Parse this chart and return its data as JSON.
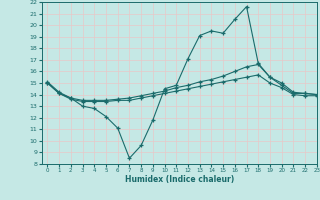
{
  "xlabel": "Humidex (Indice chaleur)",
  "xlim": [
    -0.5,
    23
  ],
  "ylim": [
    8,
    22
  ],
  "xticks": [
    0,
    1,
    2,
    3,
    4,
    5,
    6,
    7,
    8,
    9,
    10,
    11,
    12,
    13,
    14,
    15,
    16,
    17,
    18,
    19,
    20,
    21,
    22,
    23
  ],
  "yticks": [
    8,
    9,
    10,
    11,
    12,
    13,
    14,
    15,
    16,
    17,
    18,
    19,
    20,
    21,
    22
  ],
  "bg_color": "#c5e8e5",
  "grid_color": "#e8c8c8",
  "line_color": "#1a6b6b",
  "line1_x": [
    0,
    1,
    2,
    3,
    4,
    5,
    6,
    7,
    8,
    9,
    10,
    11,
    12,
    13,
    14,
    15,
    16,
    17,
    18,
    19,
    20,
    21,
    22,
    23
  ],
  "line1_y": [
    15.0,
    14.1,
    13.7,
    13.0,
    12.8,
    12.1,
    11.1,
    8.5,
    9.6,
    11.8,
    14.5,
    14.8,
    17.1,
    19.1,
    19.5,
    19.3,
    20.5,
    21.6,
    16.7,
    15.5,
    14.8,
    14.1,
    14.1,
    14.0
  ],
  "line2_x": [
    0,
    1,
    2,
    3,
    4,
    5,
    6,
    7,
    8,
    9,
    10,
    11,
    12,
    13,
    14,
    15,
    16,
    17,
    18,
    19,
    20,
    21,
    22,
    23
  ],
  "line2_y": [
    15.1,
    14.2,
    13.7,
    13.5,
    13.5,
    13.5,
    13.6,
    13.7,
    13.9,
    14.1,
    14.3,
    14.6,
    14.8,
    15.1,
    15.3,
    15.6,
    16.0,
    16.4,
    16.6,
    15.5,
    15.0,
    14.2,
    14.1,
    14.0
  ],
  "line3_x": [
    0,
    1,
    2,
    3,
    4,
    5,
    6,
    7,
    8,
    9,
    10,
    11,
    12,
    13,
    14,
    15,
    16,
    17,
    18,
    19,
    20,
    21,
    22,
    23
  ],
  "line3_y": [
    15.0,
    14.1,
    13.6,
    13.4,
    13.4,
    13.4,
    13.5,
    13.5,
    13.7,
    13.9,
    14.1,
    14.3,
    14.5,
    14.7,
    14.9,
    15.1,
    15.3,
    15.5,
    15.7,
    15.0,
    14.6,
    14.0,
    13.9,
    13.9
  ]
}
